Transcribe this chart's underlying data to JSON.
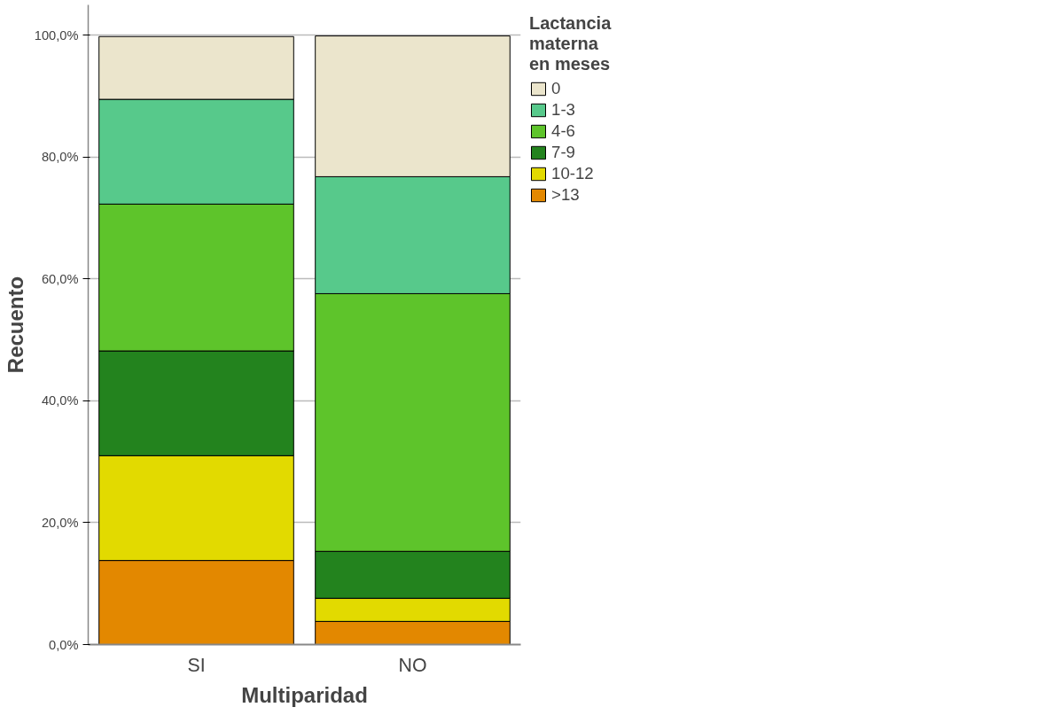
{
  "chart_data": {
    "type": "bar",
    "stacked": true,
    "xlabel": "Multiparidad",
    "ylabel": "Recuento",
    "legend_title": "Lactancia materna en meses",
    "categories": [
      "SI",
      "NO"
    ],
    "series": [
      {
        "name": ">13",
        "color": "#e38800",
        "values": [
          13.8,
          3.8
        ]
      },
      {
        "name": "10-12",
        "color": "#e2da00",
        "values": [
          17.2,
          3.8
        ]
      },
      {
        "name": "7-9",
        "color": "#23831e",
        "values": [
          17.2,
          7.7
        ]
      },
      {
        "name": "4-6",
        "color": "#5ec42b",
        "values": [
          24.1,
          42.3
        ]
      },
      {
        "name": "1-3",
        "color": "#57c98b",
        "values": [
          17.2,
          19.2
        ]
      },
      {
        "name": "0",
        "color": "#ebe5cc",
        "values": [
          10.3,
          23.1
        ]
      }
    ],
    "ylim": [
      0,
      105
    ],
    "yticks": [
      {
        "value": 0,
        "label": "0,0%"
      },
      {
        "value": 20,
        "label": "20,0%"
      },
      {
        "value": 40,
        "label": "40,0%"
      },
      {
        "value": 60,
        "label": "60,0%"
      },
      {
        "value": 80,
        "label": "80,0%"
      },
      {
        "value": 100,
        "label": "100,0%"
      }
    ],
    "grid": "y",
    "legend": "right"
  }
}
